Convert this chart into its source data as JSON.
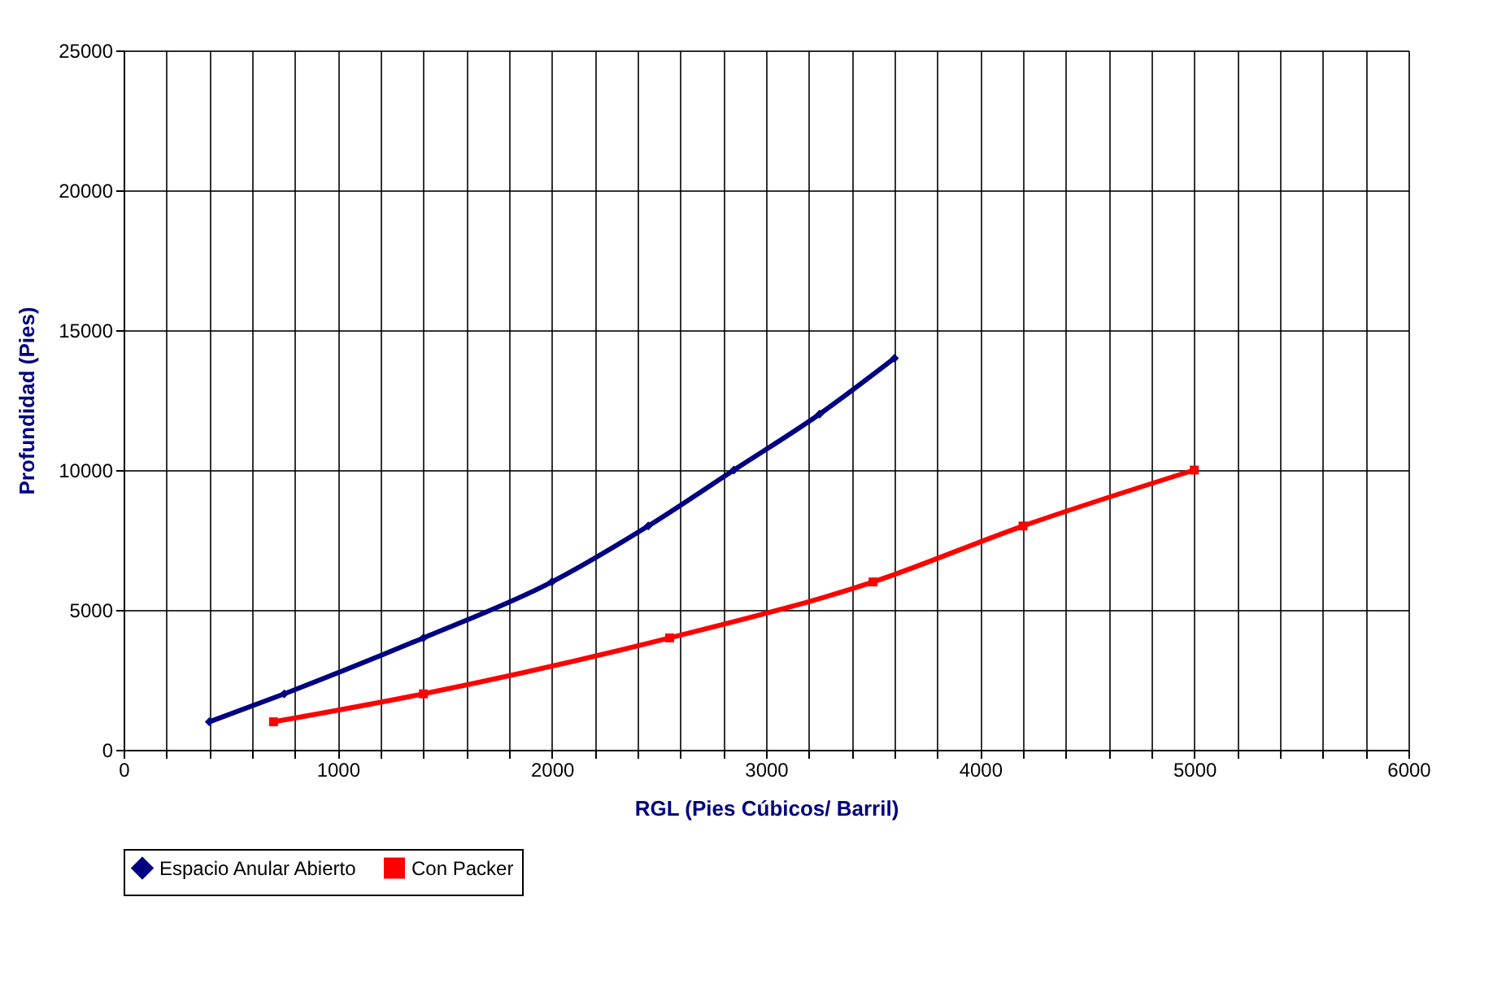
{
  "chart_data": {
    "type": "line",
    "xlabel": "RGL (Pies Cúbicos/ Barril)",
    "ylabel": "Profundidad (Pies)",
    "xlim": [
      0,
      6000
    ],
    "xticks": [
      0,
      {
        "value": 200,
        "label": null
      },
      {
        "value": 400,
        "label": null
      },
      {
        "value": 600,
        "label": null
      },
      {
        "value": 800,
        "label": null
      },
      1000,
      {
        "value": 1200,
        "label": null
      },
      {
        "value": 1400,
        "label": null
      },
      {
        "value": 1600,
        "label": null
      },
      {
        "value": 1800,
        "label": null
      },
      2000,
      {
        "value": 2200,
        "label": null
      },
      {
        "value": 2400,
        "label": null
      },
      {
        "value": 2600,
        "label": null
      },
      {
        "value": 2800,
        "label": null
      },
      3000,
      {
        "value": 3200,
        "label": null
      },
      {
        "value": 3400,
        "label": null
      },
      {
        "value": 3600,
        "label": null
      },
      {
        "value": 3800,
        "label": null
      },
      4000,
      {
        "value": 4200,
        "label": null
      },
      {
        "value": 4400,
        "label": null
      },
      {
        "value": 4600,
        "label": null
      },
      {
        "value": 4800,
        "label": null
      },
      5000,
      {
        "value": 5200,
        "label": null
      },
      {
        "value": 5400,
        "label": null
      },
      {
        "value": 5600,
        "label": null
      },
      {
        "value": 5800,
        "label": null
      },
      6000
    ],
    "ylim": [
      0,
      25000
    ],
    "yticks": [
      0,
      5000,
      10000,
      15000,
      20000,
      25000
    ],
    "grid": true,
    "legend": "bottom",
    "series": [
      {
        "name": "Espacio Anular Abierto",
        "color": "#000080",
        "marker": "diamond",
        "x": [
          400,
          750,
          1400,
          2000,
          2450,
          2850,
          3250,
          3600
        ],
        "values": [
          1000,
          2000,
          4000,
          6000,
          8000,
          10000,
          12000,
          14000
        ]
      },
      {
        "name": "Con Packer",
        "color": "#ff0000",
        "marker": "square",
        "x": [
          700,
          1400,
          2550,
          3500,
          4200,
          5000
        ],
        "values": [
          1000,
          2000,
          4000,
          6000,
          8000,
          10000
        ]
      }
    ]
  }
}
